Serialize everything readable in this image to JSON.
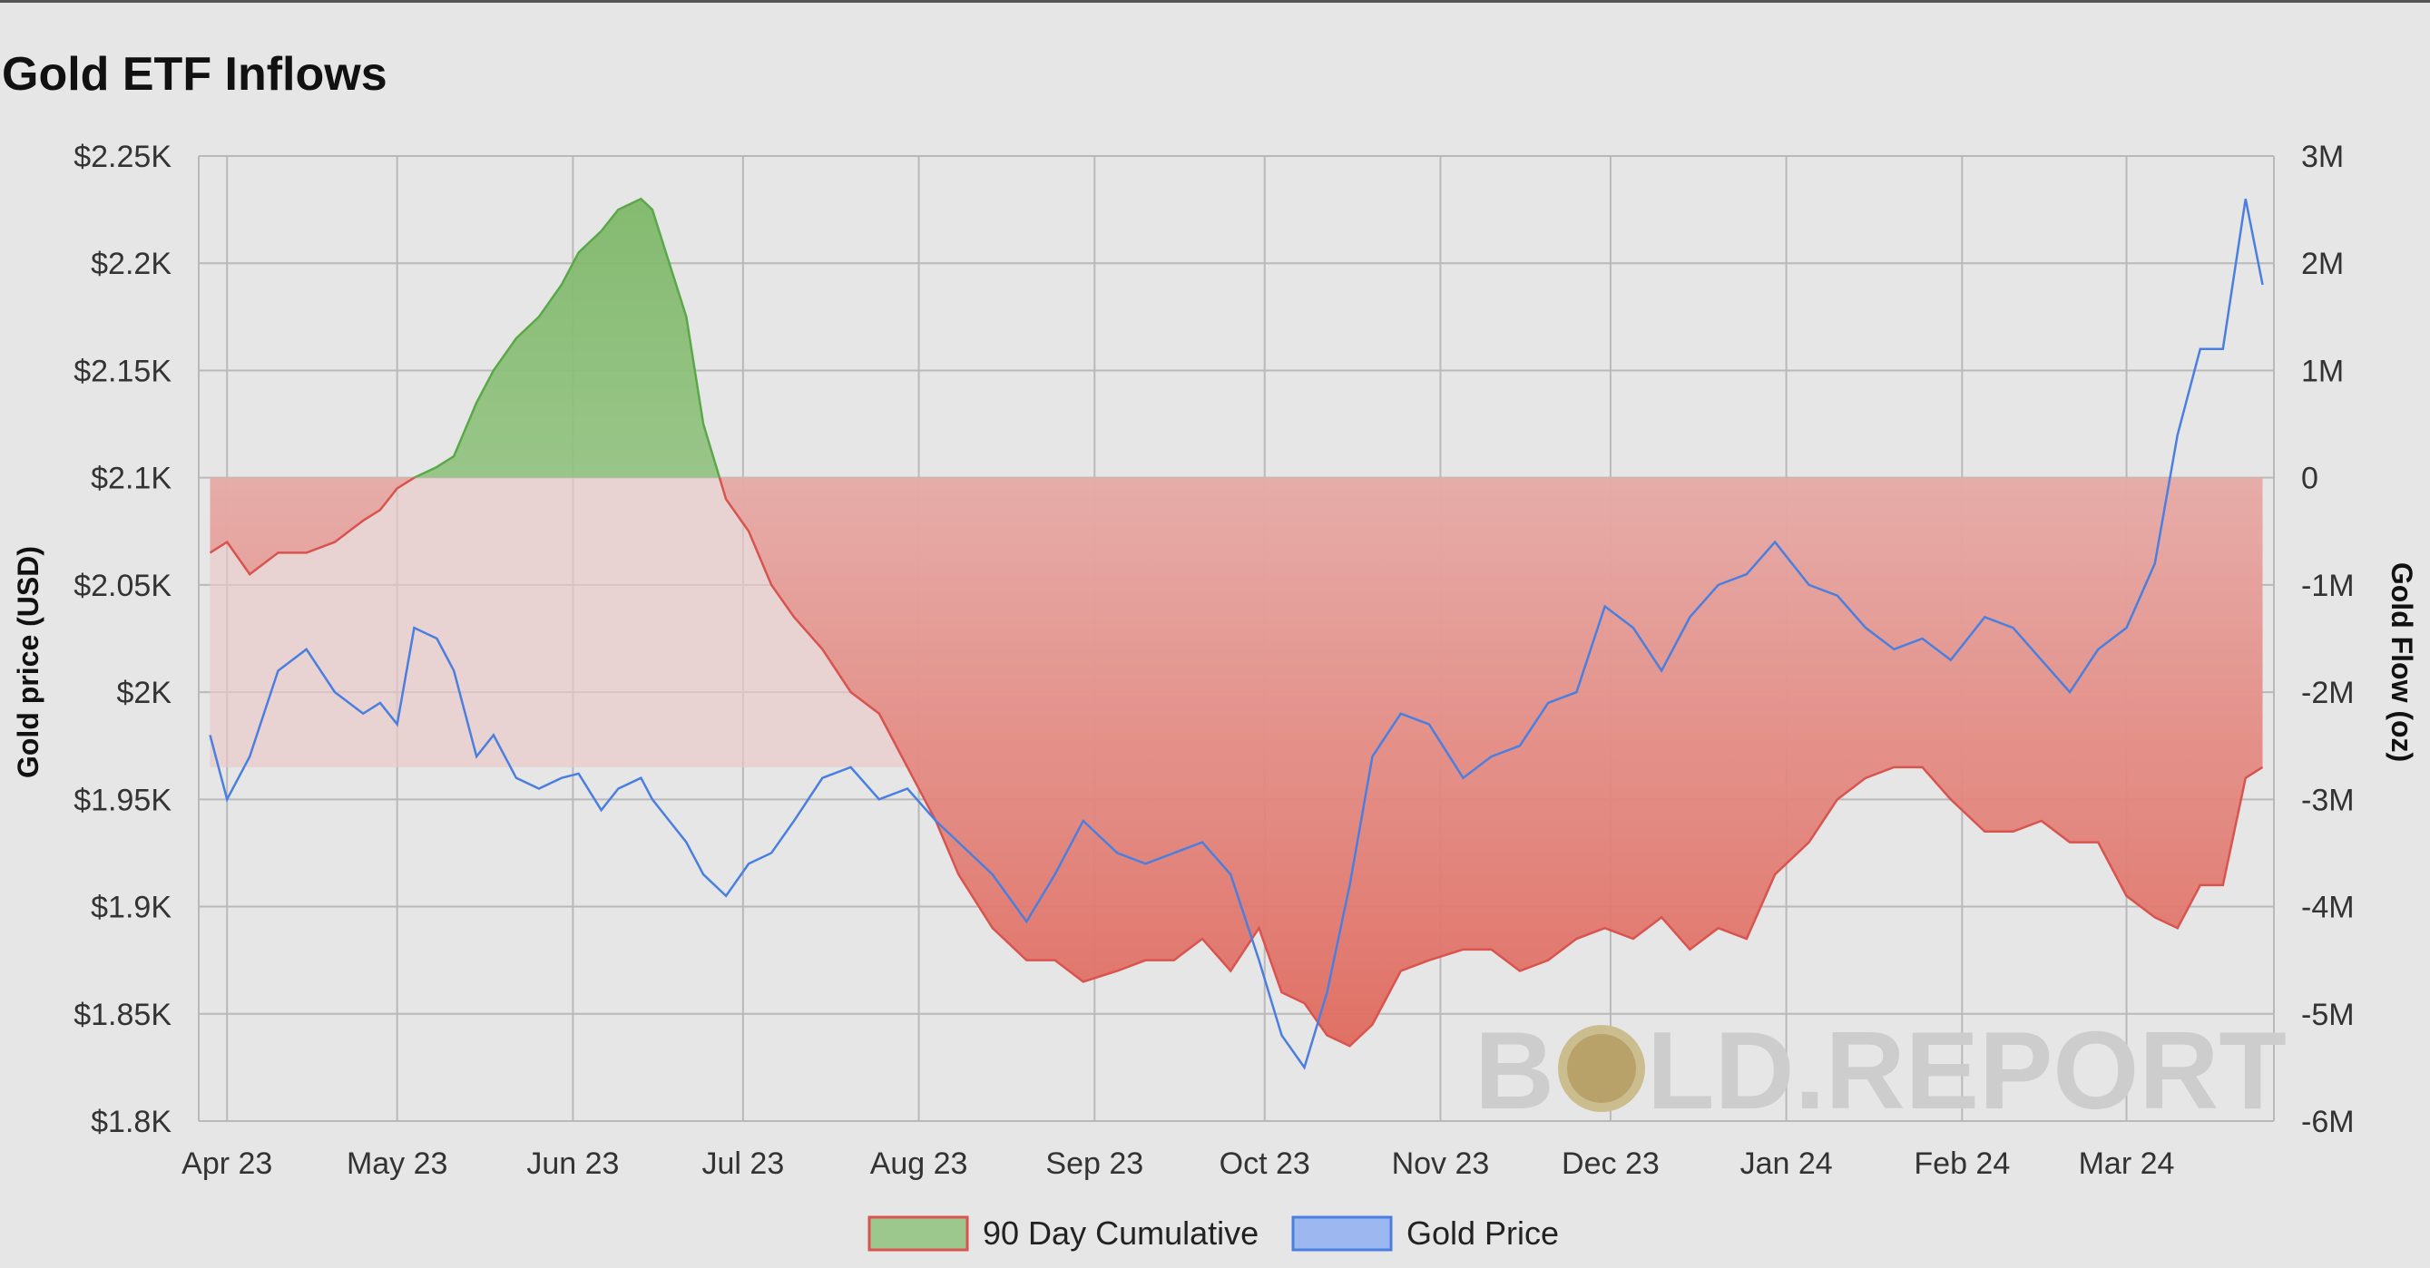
{
  "header": {
    "title": "Gold ETF Inflows"
  },
  "legend": {
    "items": [
      {
        "label": "90 Day Cumulative",
        "fill": "#9dc88d",
        "stroke": "#d9534f"
      },
      {
        "label": "Gold Price",
        "fill": "#9db8f0",
        "stroke": "#4a7fe0"
      }
    ]
  },
  "watermark": {
    "left": "B",
    "right": "LD.REPORT"
  },
  "colors": {
    "background": "#e6e6e6",
    "grid": "#b9b9b9",
    "price_line": "#4a7fe0",
    "flow_positive": "#5aa84a",
    "flow_negative": "#e06a5e",
    "flow_band_top": "#e9c8c8"
  },
  "chart_data": {
    "type": "line",
    "title": "Gold ETF Inflows",
    "xlabel": "",
    "ylabel": "Gold price (USD)",
    "ylabel_right": "Gold Flow (oz)",
    "x_tick_labels": [
      "Apr 23",
      "May 23",
      "Jun 23",
      "Jul 23",
      "Aug 23",
      "Sep 23",
      "Oct 23",
      "Nov 23",
      "Dec 23",
      "Jan 24",
      "Feb 24",
      "Mar 24"
    ],
    "y_tick_labels": [
      "$2.25K",
      "$2.2K",
      "$2.15K",
      "$2.1K",
      "$2.05K",
      "$2K",
      "$1.95K",
      "$1.9K",
      "$1.85K",
      "$1.8K"
    ],
    "y2_tick_labels": [
      "3M",
      "2M",
      "1M",
      "0",
      "-1M",
      "-2M",
      "-3M",
      "-4M",
      "-5M",
      "-6M"
    ],
    "ylim": [
      1800,
      2250
    ],
    "y2lim": [
      -6000000,
      3000000
    ],
    "grid": true,
    "legend_position": "bottom-center",
    "series": [
      {
        "name": "90 Day Cumulative",
        "axis": "right",
        "x": [
          "2023-03-29",
          "2023-04-01",
          "2023-04-05",
          "2023-04-10",
          "2023-04-15",
          "2023-04-20",
          "2023-04-25",
          "2023-04-28",
          "2023-05-01",
          "2023-05-04",
          "2023-05-08",
          "2023-05-11",
          "2023-05-15",
          "2023-05-18",
          "2023-05-22",
          "2023-05-26",
          "2023-05-30",
          "2023-06-02",
          "2023-06-06",
          "2023-06-09",
          "2023-06-13",
          "2023-06-15",
          "2023-06-18",
          "2023-06-21",
          "2023-06-24",
          "2023-06-28",
          "2023-07-02",
          "2023-07-06",
          "2023-07-10",
          "2023-07-15",
          "2023-07-20",
          "2023-07-25",
          "2023-07-30",
          "2023-08-04",
          "2023-08-08",
          "2023-08-14",
          "2023-08-20",
          "2023-08-25",
          "2023-08-30",
          "2023-09-05",
          "2023-09-10",
          "2023-09-15",
          "2023-09-20",
          "2023-09-25",
          "2023-09-30",
          "2023-10-04",
          "2023-10-08",
          "2023-10-12",
          "2023-10-16",
          "2023-10-20",
          "2023-10-25",
          "2023-10-30",
          "2023-11-05",
          "2023-11-10",
          "2023-11-15",
          "2023-11-20",
          "2023-11-25",
          "2023-11-30",
          "2023-12-05",
          "2023-12-10",
          "2023-12-15",
          "2023-12-20",
          "2023-12-25",
          "2023-12-30",
          "2024-01-05",
          "2024-01-10",
          "2024-01-15",
          "2024-01-20",
          "2024-01-25",
          "2024-01-30",
          "2024-02-05",
          "2024-02-10",
          "2024-02-15",
          "2024-02-20",
          "2024-02-25",
          "2024-03-01",
          "2024-03-06",
          "2024-03-10",
          "2024-03-14",
          "2024-03-18",
          "2024-03-22",
          "2024-03-25"
        ],
        "values": [
          -700000,
          -600000,
          -900000,
          -700000,
          -700000,
          -600000,
          -400000,
          -300000,
          -100000,
          0,
          100000,
          200000,
          700000,
          1000000,
          1300000,
          1500000,
          1800000,
          2100000,
          2300000,
          2500000,
          2600000,
          2500000,
          2000000,
          1500000,
          500000,
          -200000,
          -500000,
          -1000000,
          -1300000,
          -1600000,
          -2000000,
          -2200000,
          -2700000,
          -3200000,
          -3700000,
          -4200000,
          -4500000,
          -4500000,
          -4700000,
          -4600000,
          -4500000,
          -4500000,
          -4300000,
          -4600000,
          -4200000,
          -4800000,
          -4900000,
          -5200000,
          -5300000,
          -5100000,
          -4600000,
          -4500000,
          -4400000,
          -4400000,
          -4600000,
          -4500000,
          -4300000,
          -4200000,
          -4300000,
          -4100000,
          -4400000,
          -4200000,
          -4300000,
          -3700000,
          -3400000,
          -3000000,
          -2800000,
          -2700000,
          -2700000,
          -3000000,
          -3300000,
          -3300000,
          -3200000,
          -3400000,
          -3400000,
          -3900000,
          -4100000,
          -4200000,
          -3800000,
          -3800000,
          -2800000,
          -2700000
        ]
      },
      {
        "name": "Gold Price",
        "axis": "left",
        "x": [
          "2023-03-29",
          "2023-04-01",
          "2023-04-05",
          "2023-04-10",
          "2023-04-15",
          "2023-04-20",
          "2023-04-25",
          "2023-04-28",
          "2023-05-01",
          "2023-05-04",
          "2023-05-08",
          "2023-05-11",
          "2023-05-15",
          "2023-05-18",
          "2023-05-22",
          "2023-05-26",
          "2023-05-30",
          "2023-06-02",
          "2023-06-06",
          "2023-06-09",
          "2023-06-13",
          "2023-06-15",
          "2023-06-18",
          "2023-06-21",
          "2023-06-24",
          "2023-06-28",
          "2023-07-02",
          "2023-07-06",
          "2023-07-10",
          "2023-07-15",
          "2023-07-20",
          "2023-07-25",
          "2023-07-30",
          "2023-08-04",
          "2023-08-08",
          "2023-08-14",
          "2023-08-20",
          "2023-08-25",
          "2023-08-30",
          "2023-09-05",
          "2023-09-10",
          "2023-09-15",
          "2023-09-20",
          "2023-09-25",
          "2023-09-30",
          "2023-10-04",
          "2023-10-08",
          "2023-10-12",
          "2023-10-16",
          "2023-10-20",
          "2023-10-25",
          "2023-10-30",
          "2023-11-05",
          "2023-11-10",
          "2023-11-15",
          "2023-11-20",
          "2023-11-25",
          "2023-11-30",
          "2023-12-05",
          "2023-12-10",
          "2023-12-15",
          "2023-12-20",
          "2023-12-25",
          "2023-12-30",
          "2024-01-05",
          "2024-01-10",
          "2024-01-15",
          "2024-01-20",
          "2024-01-25",
          "2024-01-30",
          "2024-02-05",
          "2024-02-10",
          "2024-02-15",
          "2024-02-20",
          "2024-02-25",
          "2024-03-01",
          "2024-03-06",
          "2024-03-10",
          "2024-03-14",
          "2024-03-18",
          "2024-03-22",
          "2024-03-25"
        ],
        "values": [
          1980,
          1950,
          1970,
          2010,
          2020,
          2000,
          1990,
          1995,
          1985,
          2030,
          2025,
          2010,
          1970,
          1980,
          1960,
          1955,
          1960,
          1962,
          1945,
          1955,
          1960,
          1950,
          1940,
          1930,
          1915,
          1905,
          1920,
          1925,
          1940,
          1960,
          1965,
          1950,
          1955,
          1940,
          1930,
          1915,
          1893,
          1915,
          1940,
          1925,
          1920,
          1925,
          1930,
          1915,
          1875,
          1840,
          1825,
          1860,
          1910,
          1970,
          1990,
          1985,
          1960,
          1970,
          1975,
          1995,
          2000,
          2040,
          2030,
          2010,
          2035,
          2050,
          2055,
          2070,
          2050,
          2045,
          2030,
          2020,
          2025,
          2015,
          2035,
          2030,
          2015,
          2000,
          2020,
          2030,
          2060,
          2120,
          2160,
          2160,
          2230,
          2190
        ]
      }
    ]
  }
}
